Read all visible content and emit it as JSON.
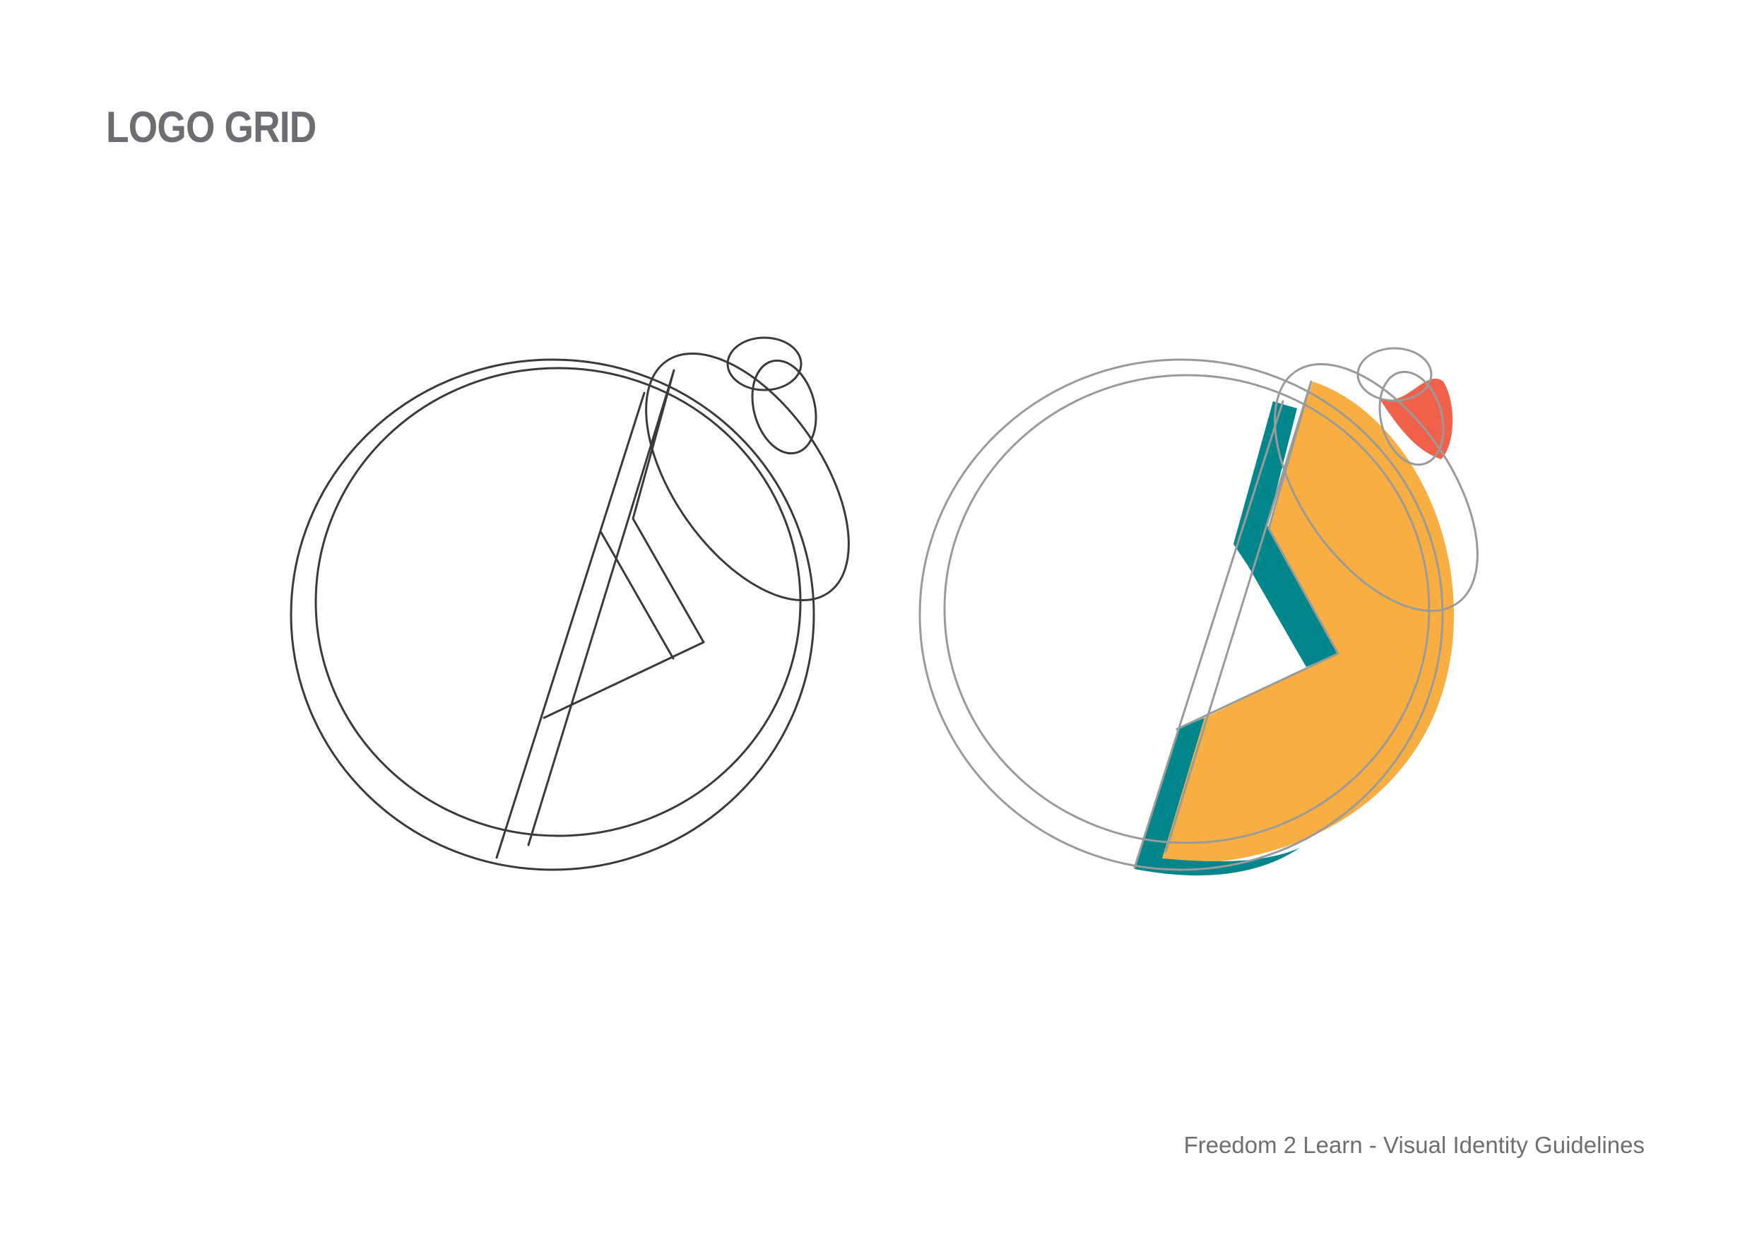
{
  "page": {
    "title": "LOGO GRID",
    "footer": "Freedom 2 Learn - Visual Identity Guidelines"
  },
  "colors": {
    "text_gray": "#6d6e71",
    "grid_line_dark": "#3a3a3a",
    "grid_line_light": "#9a9a9a",
    "logo_teal": "#00868b",
    "logo_orange": "#f8ae40",
    "logo_red": "#f0604a",
    "background": "#ffffff"
  },
  "figures": [
    {
      "id": "construction-grid",
      "style": "outline"
    },
    {
      "id": "filled-logo-over-grid",
      "style": "filled"
    }
  ]
}
